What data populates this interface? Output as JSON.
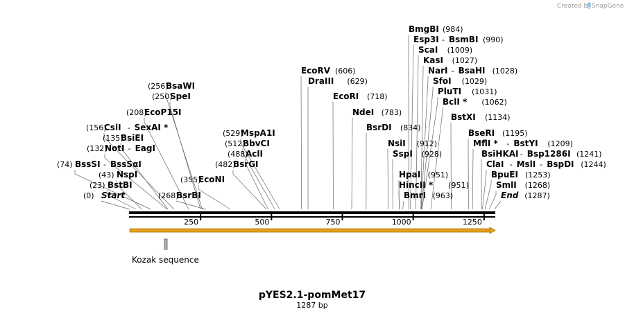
{
  "header": {
    "credit": "Created by",
    "brand": "SnapGene"
  },
  "map": {
    "title": "pYES2.1-pomMet17",
    "length_label": "1287 bp",
    "length": 1287
  },
  "axis": {
    "ticks": [
      250,
      500,
      750,
      1000,
      1250
    ]
  },
  "features": [
    {
      "label": "Kozak sequence",
      "color": "#b3b3b3"
    }
  ],
  "backbone": {
    "arrow_color": "#e6a019"
  },
  "sites": [
    {
      "name": "Start",
      "pos": 0,
      "italic": true
    },
    {
      "name": "BstBI",
      "pos": 23
    },
    {
      "name": "NspI",
      "pos": 43
    },
    {
      "name": "BssSI",
      "name2": "BssSαI",
      "pos": 74
    },
    {
      "name": "NotI",
      "name2": "EagI",
      "pos": 132
    },
    {
      "name": "BsiEI",
      "pos": 135
    },
    {
      "name": "CsiI",
      "name2": "SexAI *",
      "pos": 156
    },
    {
      "name": "EcoP15I",
      "pos": 208
    },
    {
      "name": "SpeI",
      "pos": 250
    },
    {
      "name": "BsaWI",
      "pos": 256
    },
    {
      "name": "BsrBI",
      "pos": 268
    },
    {
      "name": "EcoNI",
      "pos": 355
    },
    {
      "name": "BsrGI",
      "pos": 482
    },
    {
      "name": "AclI",
      "pos": 488
    },
    {
      "name": "BbvCI",
      "pos": 512
    },
    {
      "name": "MspA1I",
      "pos": 529
    },
    {
      "name": "EcoRV",
      "pos": 606
    },
    {
      "name": "DraIII",
      "pos": 629
    },
    {
      "name": "EcoRI",
      "pos": 718
    },
    {
      "name": "NdeI",
      "pos": 783
    },
    {
      "name": "BsrDI",
      "pos": 834
    },
    {
      "name": "NsiI",
      "pos": 912
    },
    {
      "name": "SspI",
      "pos": 928
    },
    {
      "name": "HpaI",
      "pos": 951
    },
    {
      "name": "HincII *",
      "pos": 951
    },
    {
      "name": "BmrI",
      "pos": 963
    },
    {
      "name": "BmgBI",
      "pos": 984
    },
    {
      "name": "Esp3I",
      "name2": "BsmBI",
      "pos": 990
    },
    {
      "name": "ScaI",
      "pos": 1009
    },
    {
      "name": "KasI",
      "pos": 1027
    },
    {
      "name": "NarI",
      "name2": "BsaHI",
      "pos": 1028
    },
    {
      "name": "SfoI",
      "pos": 1029
    },
    {
      "name": "PluTI",
      "pos": 1031
    },
    {
      "name": "BclI *",
      "pos": 1062
    },
    {
      "name": "BstXI",
      "pos": 1134
    },
    {
      "name": "BseRI",
      "pos": 1195
    },
    {
      "name": "MflI *",
      "name2": "BstYI",
      "pos": 1209
    },
    {
      "name": "BsiHKAI",
      "name2": "Bsp1286I",
      "pos": 1241
    },
    {
      "name": "ClaI",
      "name2": "MslI",
      "name3": "BspDI",
      "pos": 1244
    },
    {
      "name": "BpuEI",
      "pos": 1253
    },
    {
      "name": "SmlI",
      "pos": 1268
    },
    {
      "name": "End",
      "pos": 1287,
      "italic": true
    }
  ]
}
